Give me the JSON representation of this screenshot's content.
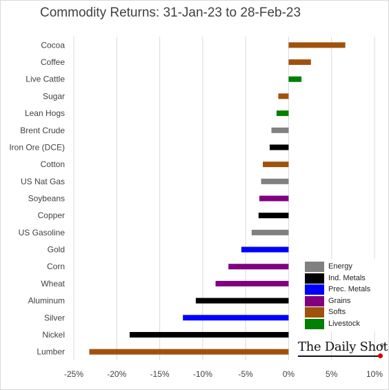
{
  "chart_data": {
    "type": "bar",
    "orientation": "horizontal",
    "title": "Commodity Returns: 31-Jan-23 to 28-Feb-23",
    "xlim": [
      -25,
      10
    ],
    "xticks": [
      -25,
      -20,
      -15,
      -10,
      -5,
      0,
      5,
      10
    ],
    "xtick_labels": [
      "-25%",
      "-20%",
      "-15%",
      "-10%",
      "-5%",
      "0%",
      "5%",
      "10%"
    ],
    "grid": "vertical",
    "legend_position": "bottom-right",
    "groups": [
      {
        "name": "Energy",
        "color": "#808080"
      },
      {
        "name": "Ind. Metals",
        "color": "#000000"
      },
      {
        "name": "Prec. Metals",
        "color": "#0000ff"
      },
      {
        "name": "Grains",
        "color": "#800080"
      },
      {
        "name": "Softs",
        "color": "#a0520d"
      },
      {
        "name": "Livestock",
        "color": "#008000"
      }
    ],
    "bars": [
      {
        "label": "Cocoa",
        "value": 6.6,
        "group": "Softs"
      },
      {
        "label": "Coffee",
        "value": 2.6,
        "group": "Softs"
      },
      {
        "label": "Live Cattle",
        "value": 1.5,
        "group": "Livestock"
      },
      {
        "label": "Sugar",
        "value": -1.2,
        "group": "Softs"
      },
      {
        "label": "Lean Hogs",
        "value": -1.4,
        "group": "Livestock"
      },
      {
        "label": "Brent Crude",
        "value": -2.0,
        "group": "Energy"
      },
      {
        "label": "Iron Ore (DCE)",
        "value": -2.2,
        "group": "Ind. Metals"
      },
      {
        "label": "Cotton",
        "value": -3.0,
        "group": "Softs"
      },
      {
        "label": "US Nat Gas",
        "value": -3.2,
        "group": "Energy"
      },
      {
        "label": "Soybeans",
        "value": -3.4,
        "group": "Grains"
      },
      {
        "label": "Copper",
        "value": -3.5,
        "group": "Ind. Metals"
      },
      {
        "label": "US Gasoline",
        "value": -4.3,
        "group": "Energy"
      },
      {
        "label": "Gold",
        "value": -5.5,
        "group": "Prec. Metals"
      },
      {
        "label": "Corn",
        "value": -7.0,
        "group": "Grains"
      },
      {
        "label": "Wheat",
        "value": -8.5,
        "group": "Grains"
      },
      {
        "label": "Aluminum",
        "value": -10.8,
        "group": "Ind. Metals"
      },
      {
        "label": "Silver",
        "value": -12.3,
        "group": "Prec. Metals"
      },
      {
        "label": "Nickel",
        "value": -18.5,
        "group": "Ind. Metals"
      },
      {
        "label": "Lumber",
        "value": -23.2,
        "group": "Softs"
      }
    ]
  },
  "branding": {
    "logo_text": "The Daily Shot",
    "logo_mark": "®"
  }
}
